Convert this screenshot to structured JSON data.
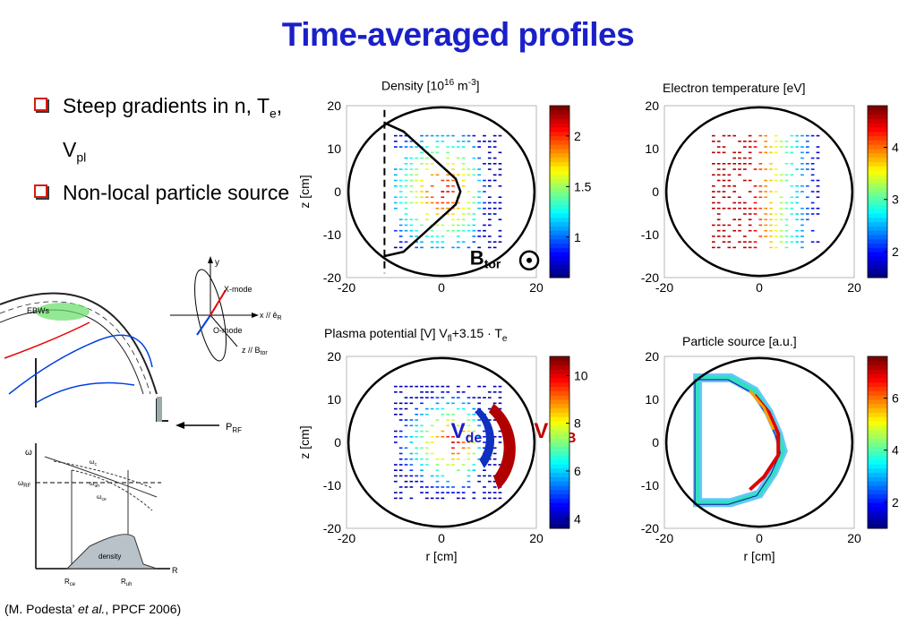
{
  "slide": {
    "title": "Time-averaged profiles",
    "bullets": [
      {
        "main": "Steep gradients in n, T",
        "sub1": "e",
        "mid": ", V",
        "sub2": "pl"
      },
      {
        "main": "Non-local particle source"
      }
    ],
    "citation": {
      "pre": "(M. Podesta’ ",
      "ital": "et al.",
      "post": ", PPCF 2006)"
    }
  },
  "chart_data": [
    {
      "type": "heatmap",
      "title": "Density  [10^16 m^-3]",
      "title_parts": {
        "a": "Density  [10",
        "sup1": "16",
        "b": " m",
        "sup2": "-3",
        "c": "]"
      },
      "xlabel": "",
      "ylabel": "z  [cm]",
      "xlim": [
        -20,
        20
      ],
      "ylim": [
        -20,
        20
      ],
      "xticks": [
        -20,
        0,
        20
      ],
      "yticks": [
        -20,
        -10,
        0,
        10,
        20
      ],
      "colorbar": {
        "ticks": [
          1,
          1.5,
          2
        ],
        "range": [
          0.6,
          2.3
        ]
      },
      "annotation": {
        "text": "B",
        "sub": "tor"
      },
      "profile": [
        [
          -12,
          16
        ],
        [
          -8,
          14
        ],
        [
          -4,
          10
        ],
        [
          0,
          6
        ],
        [
          3,
          3
        ],
        [
          4,
          0
        ],
        [
          3,
          -3
        ],
        [
          0,
          -6
        ],
        [
          -4,
          -10
        ],
        [
          -8,
          -14
        ],
        [
          -12,
          -15
        ]
      ],
      "dashed_line_x": -12
    },
    {
      "type": "heatmap",
      "title": "Electron temperature  [eV]",
      "xlabel": "",
      "ylabel": "",
      "xlim": [
        -20,
        20
      ],
      "ylim": [
        -20,
        20
      ],
      "xticks": [
        -20,
        0,
        20
      ],
      "yticks": [
        -20,
        -10,
        0,
        10,
        20
      ],
      "colorbar": {
        "ticks": [
          2,
          3,
          4
        ],
        "range": [
          1.5,
          4.8
        ]
      }
    },
    {
      "type": "heatmap",
      "title": "Plasma potential [V]   V_fl+3.15 · T_e",
      "title_parts": {
        "a": "Plasma potential [V]   V",
        "sub1": "fl",
        "b": "+3.15 · T",
        "sub2": "e"
      },
      "xlabel": "r  [cm]",
      "ylabel": "z  [cm]",
      "xlim": [
        -20,
        20
      ],
      "ylim": [
        -20,
        20
      ],
      "xticks": [
        -20,
        0,
        20
      ],
      "yticks": [
        -20,
        -10,
        0,
        10,
        20
      ],
      "colorbar": {
        "ticks": [
          4,
          6,
          8,
          10
        ],
        "range": [
          3.6,
          10.8
        ]
      },
      "annotations": [
        {
          "text": "V",
          "sub": "de",
          "color": "#1a20c8"
        },
        {
          "text": "V",
          "sub": "ExB",
          "color": "#c00000"
        }
      ]
    },
    {
      "type": "heatmap",
      "title": "Particle source [a.u.]",
      "xlabel": "r  [cm]",
      "ylabel": "",
      "xlim": [
        -20,
        20
      ],
      "ylim": [
        -20,
        20
      ],
      "xticks": [
        -20,
        0,
        20
      ],
      "yticks": [
        -20,
        -10,
        0,
        10,
        20
      ],
      "colorbar": {
        "ticks": [
          2,
          4,
          6
        ],
        "range": [
          1,
          7.6
        ]
      }
    }
  ],
  "schematic": {
    "labels": {
      "ebws": "EBWs",
      "y": "y",
      "xmode": "X-mode",
      "omode": "O-mode",
      "xaxis": "x // ê",
      "xaxis_sub": "R",
      "zaxis": "z // B",
      "zaxis_sub": "tor",
      "prf": "P",
      "prf_sub": "RF",
      "omega": "ω",
      "omega_rf": "ω",
      "omega_rf_sub": "RF",
      "omega_uh": "ω",
      "omega_uh_sub": "uh",
      "omega_c": "ω",
      "omega_c_sub": "c",
      "omega_ce": "ω",
      "omega_ce_sub": "ce",
      "density": "density",
      "r": "R",
      "rce": "R",
      "rce_sub": "ce",
      "ruh": "R",
      "ruh_sub": "uh"
    }
  },
  "colors": {
    "title": "#1a20c8",
    "bullet_box": "#d02010",
    "vde": "#1a20c8",
    "vexb": "#c00000"
  }
}
